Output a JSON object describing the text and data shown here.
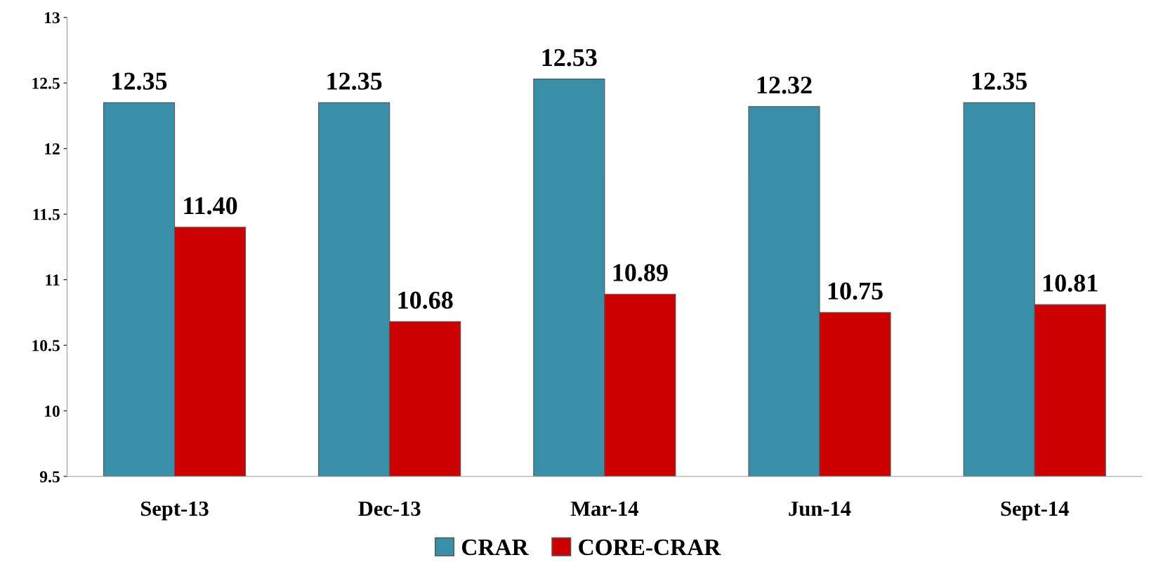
{
  "chart_data": {
    "type": "bar",
    "categories": [
      "Sept-13",
      "Dec-13",
      "Mar-14",
      "Jun-14",
      "Sept-14"
    ],
    "series": [
      {
        "name": "CRAR",
        "color": "#3a8fa8",
        "values": [
          12.35,
          12.35,
          12.53,
          12.32,
          12.35
        ],
        "value_labels": [
          "12.35",
          "12.35",
          "12.53",
          "12.32",
          "12.35"
        ]
      },
      {
        "name": "CORE-CRAR",
        "color": "#cc0000",
        "values": [
          11.4,
          10.68,
          10.89,
          10.75,
          10.81
        ],
        "value_labels": [
          "11.40",
          "10.68",
          "10.89",
          "10.75",
          "10.81"
        ]
      }
    ],
    "ylim": [
      9.5,
      13
    ],
    "yticks": [
      9.5,
      10,
      10.5,
      11,
      11.5,
      12,
      12.5,
      13
    ],
    "grid": false,
    "legend": "bottom"
  }
}
